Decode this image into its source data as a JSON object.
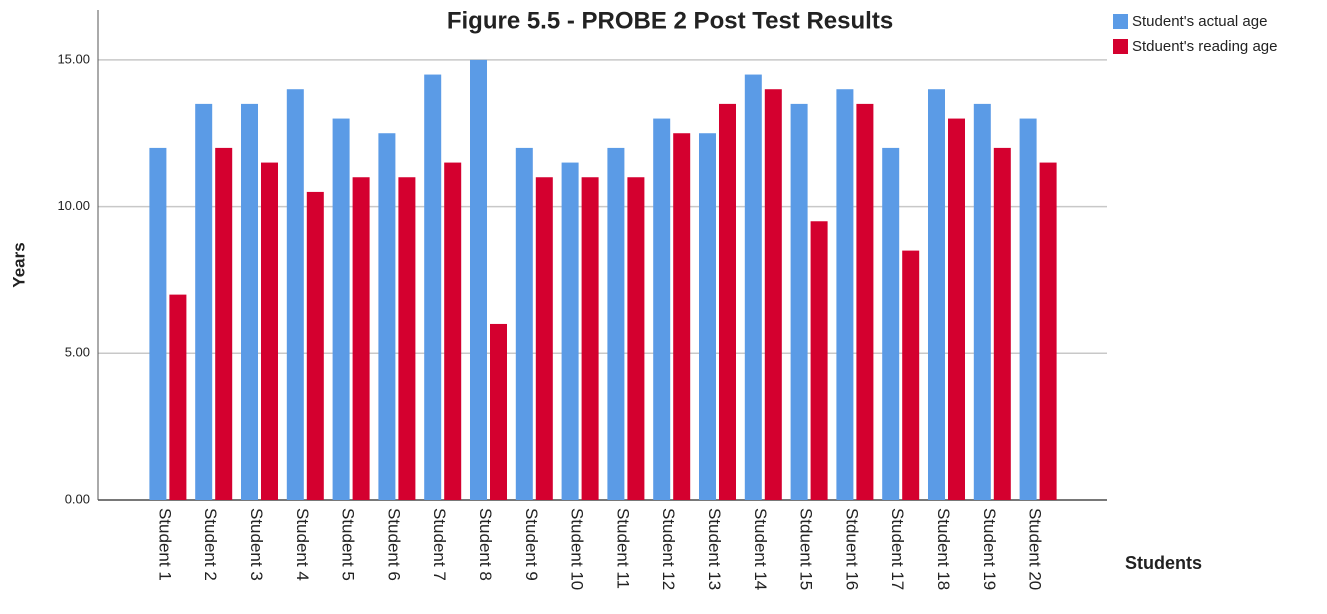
{
  "chart_data": {
    "type": "bar",
    "title": "Figure 5.5 - PROBE 2 Post Test Results",
    "x_label": "Students",
    "y_label": "Years",
    "categories": [
      "Student 1",
      "Student 2",
      "Student 3",
      "Student 4",
      "Student 5",
      "Student 6",
      "Student 7",
      "Student 8",
      "Student 9",
      "Student 10",
      "Student 11",
      "Student 12",
      "Student 13",
      "Student 14",
      "Stduent 15",
      "Stduent 16",
      "Student 17",
      "Student 18",
      "Student 19",
      "Student 20"
    ],
    "series": [
      {
        "name": "Student's actual age",
        "color": "#5b9be6",
        "values": [
          12,
          13.5,
          13.5,
          14,
          13,
          12.5,
          14.5,
          15,
          12,
          11.5,
          12,
          13,
          12.5,
          14.5,
          13.5,
          14,
          12,
          14,
          13.5,
          13
        ]
      },
      {
        "name": "Stduent's reading age",
        "color": "#d4002f",
        "values": [
          7,
          12,
          11.5,
          10.5,
          11,
          11,
          11.5,
          6,
          11,
          11,
          11,
          12.5,
          13.5,
          14,
          9.5,
          13.5,
          8.5,
          13,
          12,
          11.5
        ]
      }
    ],
    "ylim": [
      0,
      16.7
    ],
    "yticks": [
      {
        "value": 0,
        "label": "0.00"
      },
      {
        "value": 5,
        "label": "5.00"
      },
      {
        "value": 10,
        "label": "10.00"
      },
      {
        "value": 15,
        "label": "15.00"
      }
    ],
    "grid": true,
    "legend": "top-right"
  }
}
